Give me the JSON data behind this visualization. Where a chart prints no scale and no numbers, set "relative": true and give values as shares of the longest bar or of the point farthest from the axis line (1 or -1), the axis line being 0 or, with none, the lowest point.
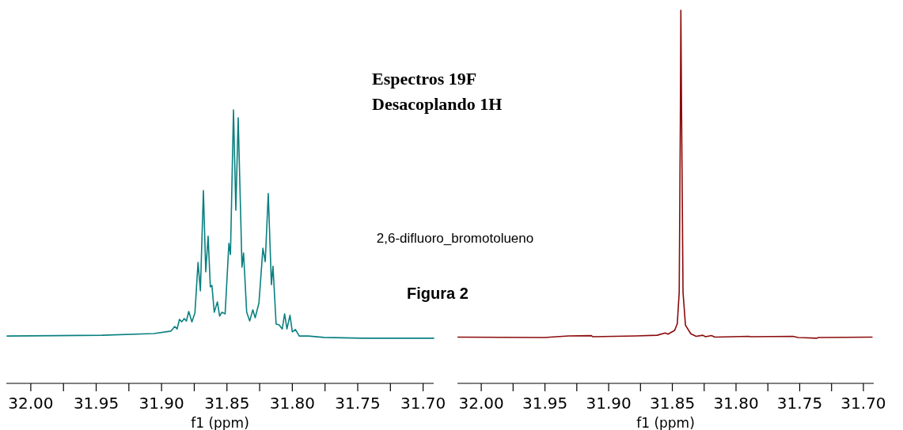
{
  "chart_data": [
    {
      "type": "line",
      "title": "Espectros 19F",
      "subtitle": "Desacoplando 1H",
      "xlabel": "f1 (ppm)",
      "relative": true,
      "annotations": [
        "2,6-difluoro_bromotolueno",
        "Figura 2"
      ],
      "xlim": [
        32.0187,
        31.6919
      ],
      "xticks": [
        {
          "value": 32.0,
          "label": "32.00"
        },
        {
          "value": 31.975,
          "label": null
        },
        {
          "value": 31.95,
          "label": "31.95"
        },
        {
          "value": 31.925,
          "label": null
        },
        {
          "value": 31.9,
          "label": "31.90"
        },
        {
          "value": 31.875,
          "label": null
        },
        {
          "value": 31.85,
          "label": "31.85"
        },
        {
          "value": 31.825,
          "label": null
        },
        {
          "value": 31.8,
          "label": "31.80"
        },
        {
          "value": 31.775,
          "label": null
        },
        {
          "value": 31.75,
          "label": "31.75"
        },
        {
          "value": 31.725,
          "label": null
        },
        {
          "value": 31.7,
          "label": "31.70"
        }
      ],
      "series": [
        {
          "color": "#0a8080",
          "x": [
            32.0181,
            31.9455,
            31.9059,
            31.8929,
            31.8899,
            31.8881,
            31.8863,
            31.8845,
            31.8827,
            31.881,
            31.8792,
            31.8768,
            31.8745,
            31.8721,
            31.8703,
            31.868,
            31.8662,
            31.8644,
            31.8627,
            31.8615,
            31.8597,
            31.8573,
            31.8556,
            31.8538,
            31.8514,
            31.8485,
            31.8473,
            31.845,
            31.8432,
            31.8414,
            31.8385,
            31.8373,
            31.8349,
            31.8326,
            31.8302,
            31.8284,
            31.8255,
            31.8225,
            31.8207,
            31.8184,
            31.816,
            31.8148,
            31.8124,
            31.8101,
            31.8077,
            31.8059,
            31.8041,
            31.8018,
            31.8,
            31.7976,
            31.7947,
            31.7876,
            31.7758,
            31.7463,
            31.6919
          ],
          "values": [
            0.173,
            0.176,
            0.182,
            0.191,
            0.208,
            0.199,
            0.234,
            0.225,
            0.237,
            0.228,
            0.263,
            0.225,
            0.257,
            0.442,
            0.338,
            0.705,
            0.408,
            0.538,
            0.353,
            0.358,
            0.26,
            0.298,
            0.246,
            0.26,
            0.254,
            0.512,
            0.471,
            1,
            0.633,
            0.971,
            0.425,
            0.477,
            0.26,
            0.228,
            0.269,
            0.24,
            0.295,
            0.494,
            0.445,
            0.694,
            0.361,
            0.428,
            0.217,
            0.214,
            0.199,
            0.254,
            0.199,
            0.249,
            0.188,
            0.197,
            0.173,
            0.173,
            0.168,
            0.165,
            0.165
          ]
        }
      ]
    },
    {
      "type": "line",
      "xlabel": "f1 (ppm)",
      "relative": true,
      "xlim": [
        32.0187,
        31.6919
      ],
      "xticks": [
        {
          "value": 32.0,
          "label": "32.00"
        },
        {
          "value": 31.975,
          "label": null
        },
        {
          "value": 31.95,
          "label": "31.95"
        },
        {
          "value": 31.925,
          "label": null
        },
        {
          "value": 31.9,
          "label": "31.90"
        },
        {
          "value": 31.875,
          "label": null
        },
        {
          "value": 31.85,
          "label": "31.85"
        },
        {
          "value": 31.825,
          "label": null
        },
        {
          "value": 31.8,
          "label": "31.80"
        },
        {
          "value": 31.775,
          "label": null
        },
        {
          "value": 31.75,
          "label": "31.75"
        },
        {
          "value": 31.725,
          "label": null
        },
        {
          "value": 31.7,
          "label": "31.70"
        }
      ],
      "series": [
        {
          "color": "#8b0a0a",
          "x": [
            32.0183,
            31.9504,
            31.9315,
            31.9135,
            31.9125,
            31.8787,
            31.8619,
            31.8556,
            31.8534,
            31.8482,
            31.8461,
            31.8446,
            31.8437,
            31.8433,
            31.8427,
            31.8416,
            31.8397,
            31.8355,
            31.8313,
            31.8261,
            31.8239,
            31.8193,
            31.8166,
            31.7902,
            31.7881,
            31.7554,
            31.7512,
            31.7365,
            31.7354,
            31.6932
          ],
          "values": [
            0.124,
            0.123,
            0.127,
            0.128,
            0.125,
            0.127,
            0.129,
            0.135,
            0.132,
            0.142,
            0.16,
            0.244,
            0.71,
            1,
            0.71,
            0.244,
            0.156,
            0.133,
            0.126,
            0.129,
            0.125,
            0.128,
            0.124,
            0.126,
            0.125,
            0.126,
            0.123,
            0.121,
            0.123,
            0.124
          ]
        }
      ]
    }
  ]
}
